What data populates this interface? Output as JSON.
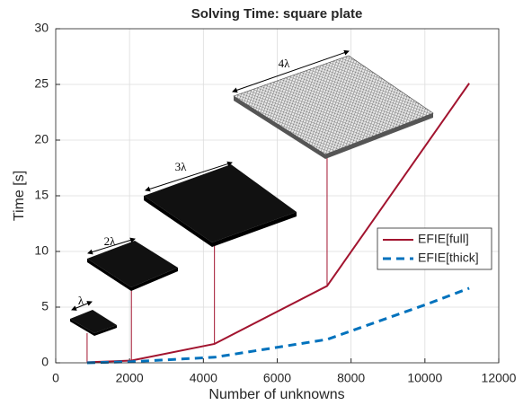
{
  "chart_data": {
    "type": "line",
    "title": "Solving Time: square plate",
    "x_label": "Number of unknowns",
    "y_label": "Time [s]",
    "xlim": [
      0,
      12000
    ],
    "xticks": [
      0,
      2000,
      4000,
      6000,
      8000,
      10000,
      12000
    ],
    "ylim": [
      0,
      30
    ],
    "yticks": [
      0,
      5,
      10,
      15,
      20,
      25,
      30
    ],
    "grid": true,
    "legend_position": "right",
    "series": [
      {
        "name": "EFIE[full]",
        "color": "#a2142f",
        "dash": false,
        "x": [
          850,
          2050,
          4300,
          7350,
          11200
        ],
        "values": [
          0.05,
          0.2,
          1.7,
          6.9,
          25.1
        ]
      },
      {
        "name": "EFIE[thick]",
        "color": "#0072bd",
        "dash": true,
        "x": [
          850,
          2050,
          4300,
          7350,
          10000,
          11200
        ],
        "values": [
          0,
          0.1,
          0.5,
          2.1,
          5.2,
          6.7
        ]
      }
    ],
    "annotations": [
      "λ",
      "2λ",
      "3λ",
      "4λ"
    ]
  }
}
